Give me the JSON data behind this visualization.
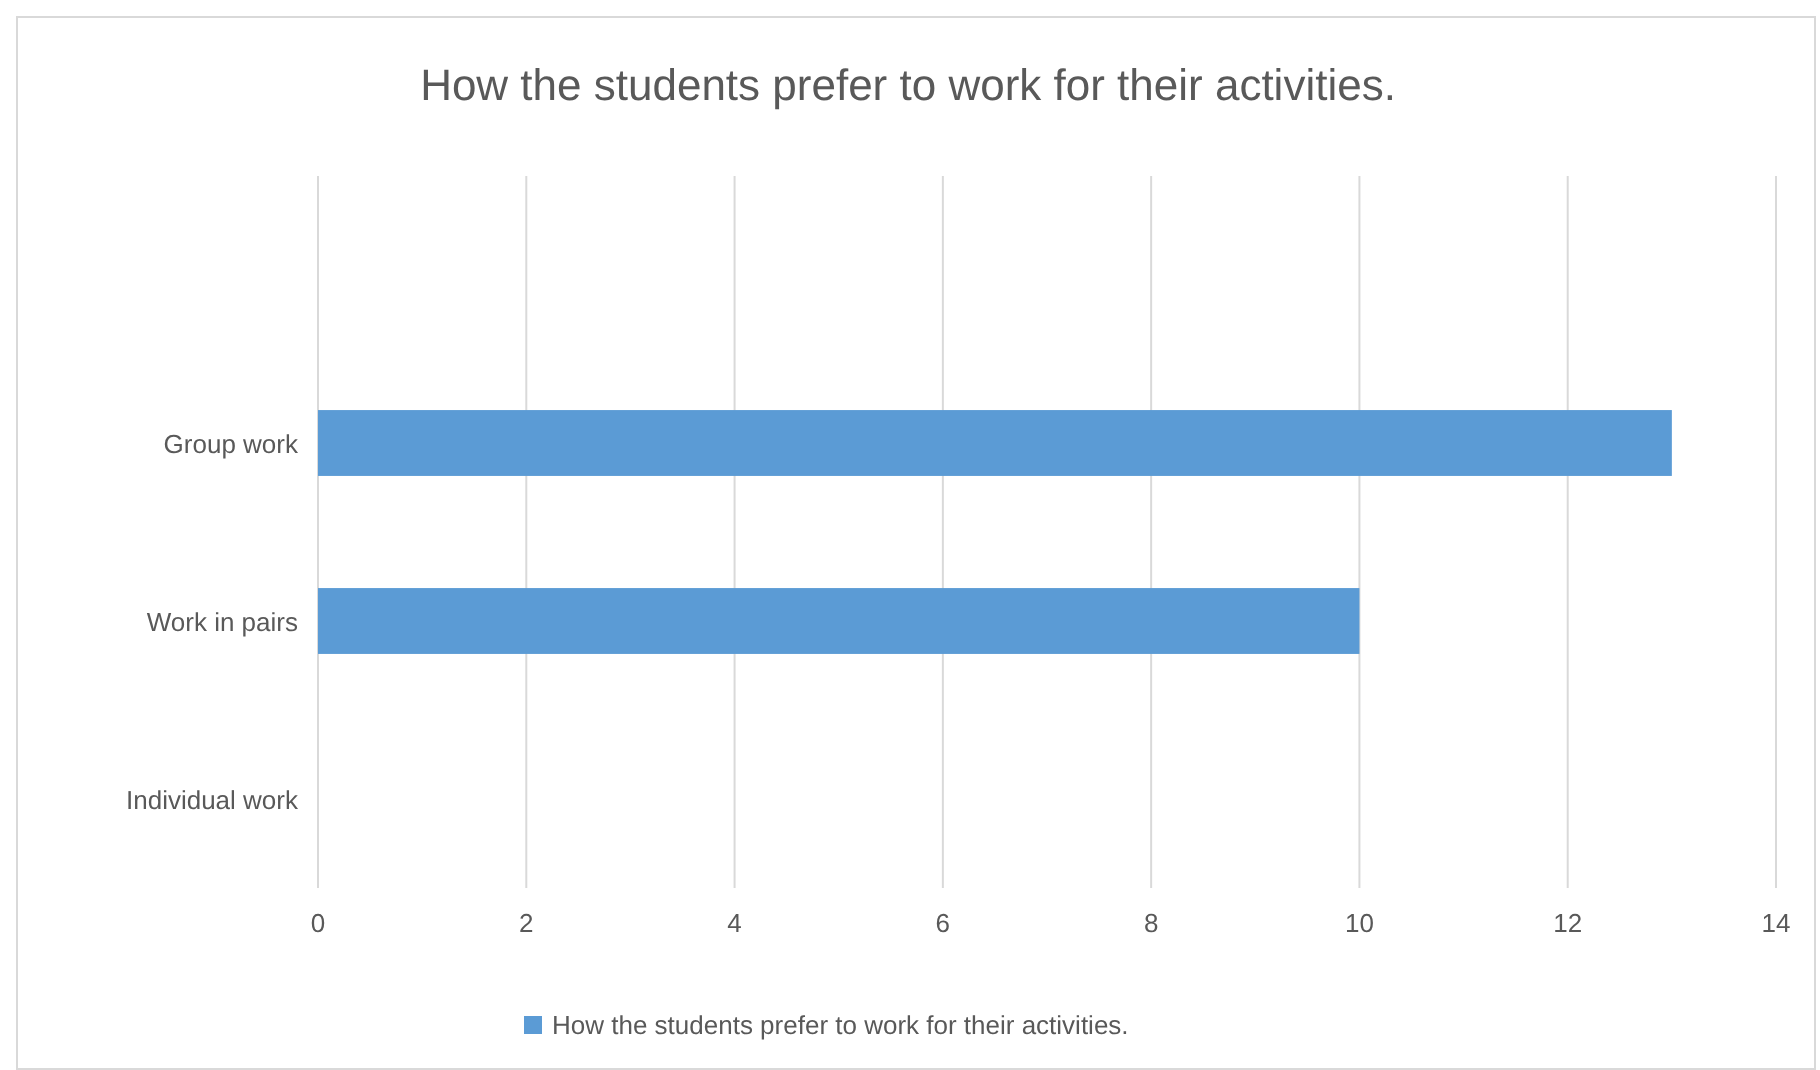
{
  "chart_data": {
    "type": "bar",
    "orientation": "horizontal",
    "title": "How the students prefer to work for their activities.",
    "categories": [
      null,
      "Group work",
      "Work in pairs",
      "Individual work"
    ],
    "series": [
      {
        "name": "How the students prefer to work for their activities.",
        "color": "#5b9bd5",
        "values": [
          null,
          13,
          10,
          0
        ]
      }
    ],
    "xlim": [
      0,
      14
    ],
    "xticks": [
      0,
      2,
      4,
      6,
      8,
      10,
      12,
      14
    ],
    "grid": "x",
    "legend": "bottom"
  }
}
